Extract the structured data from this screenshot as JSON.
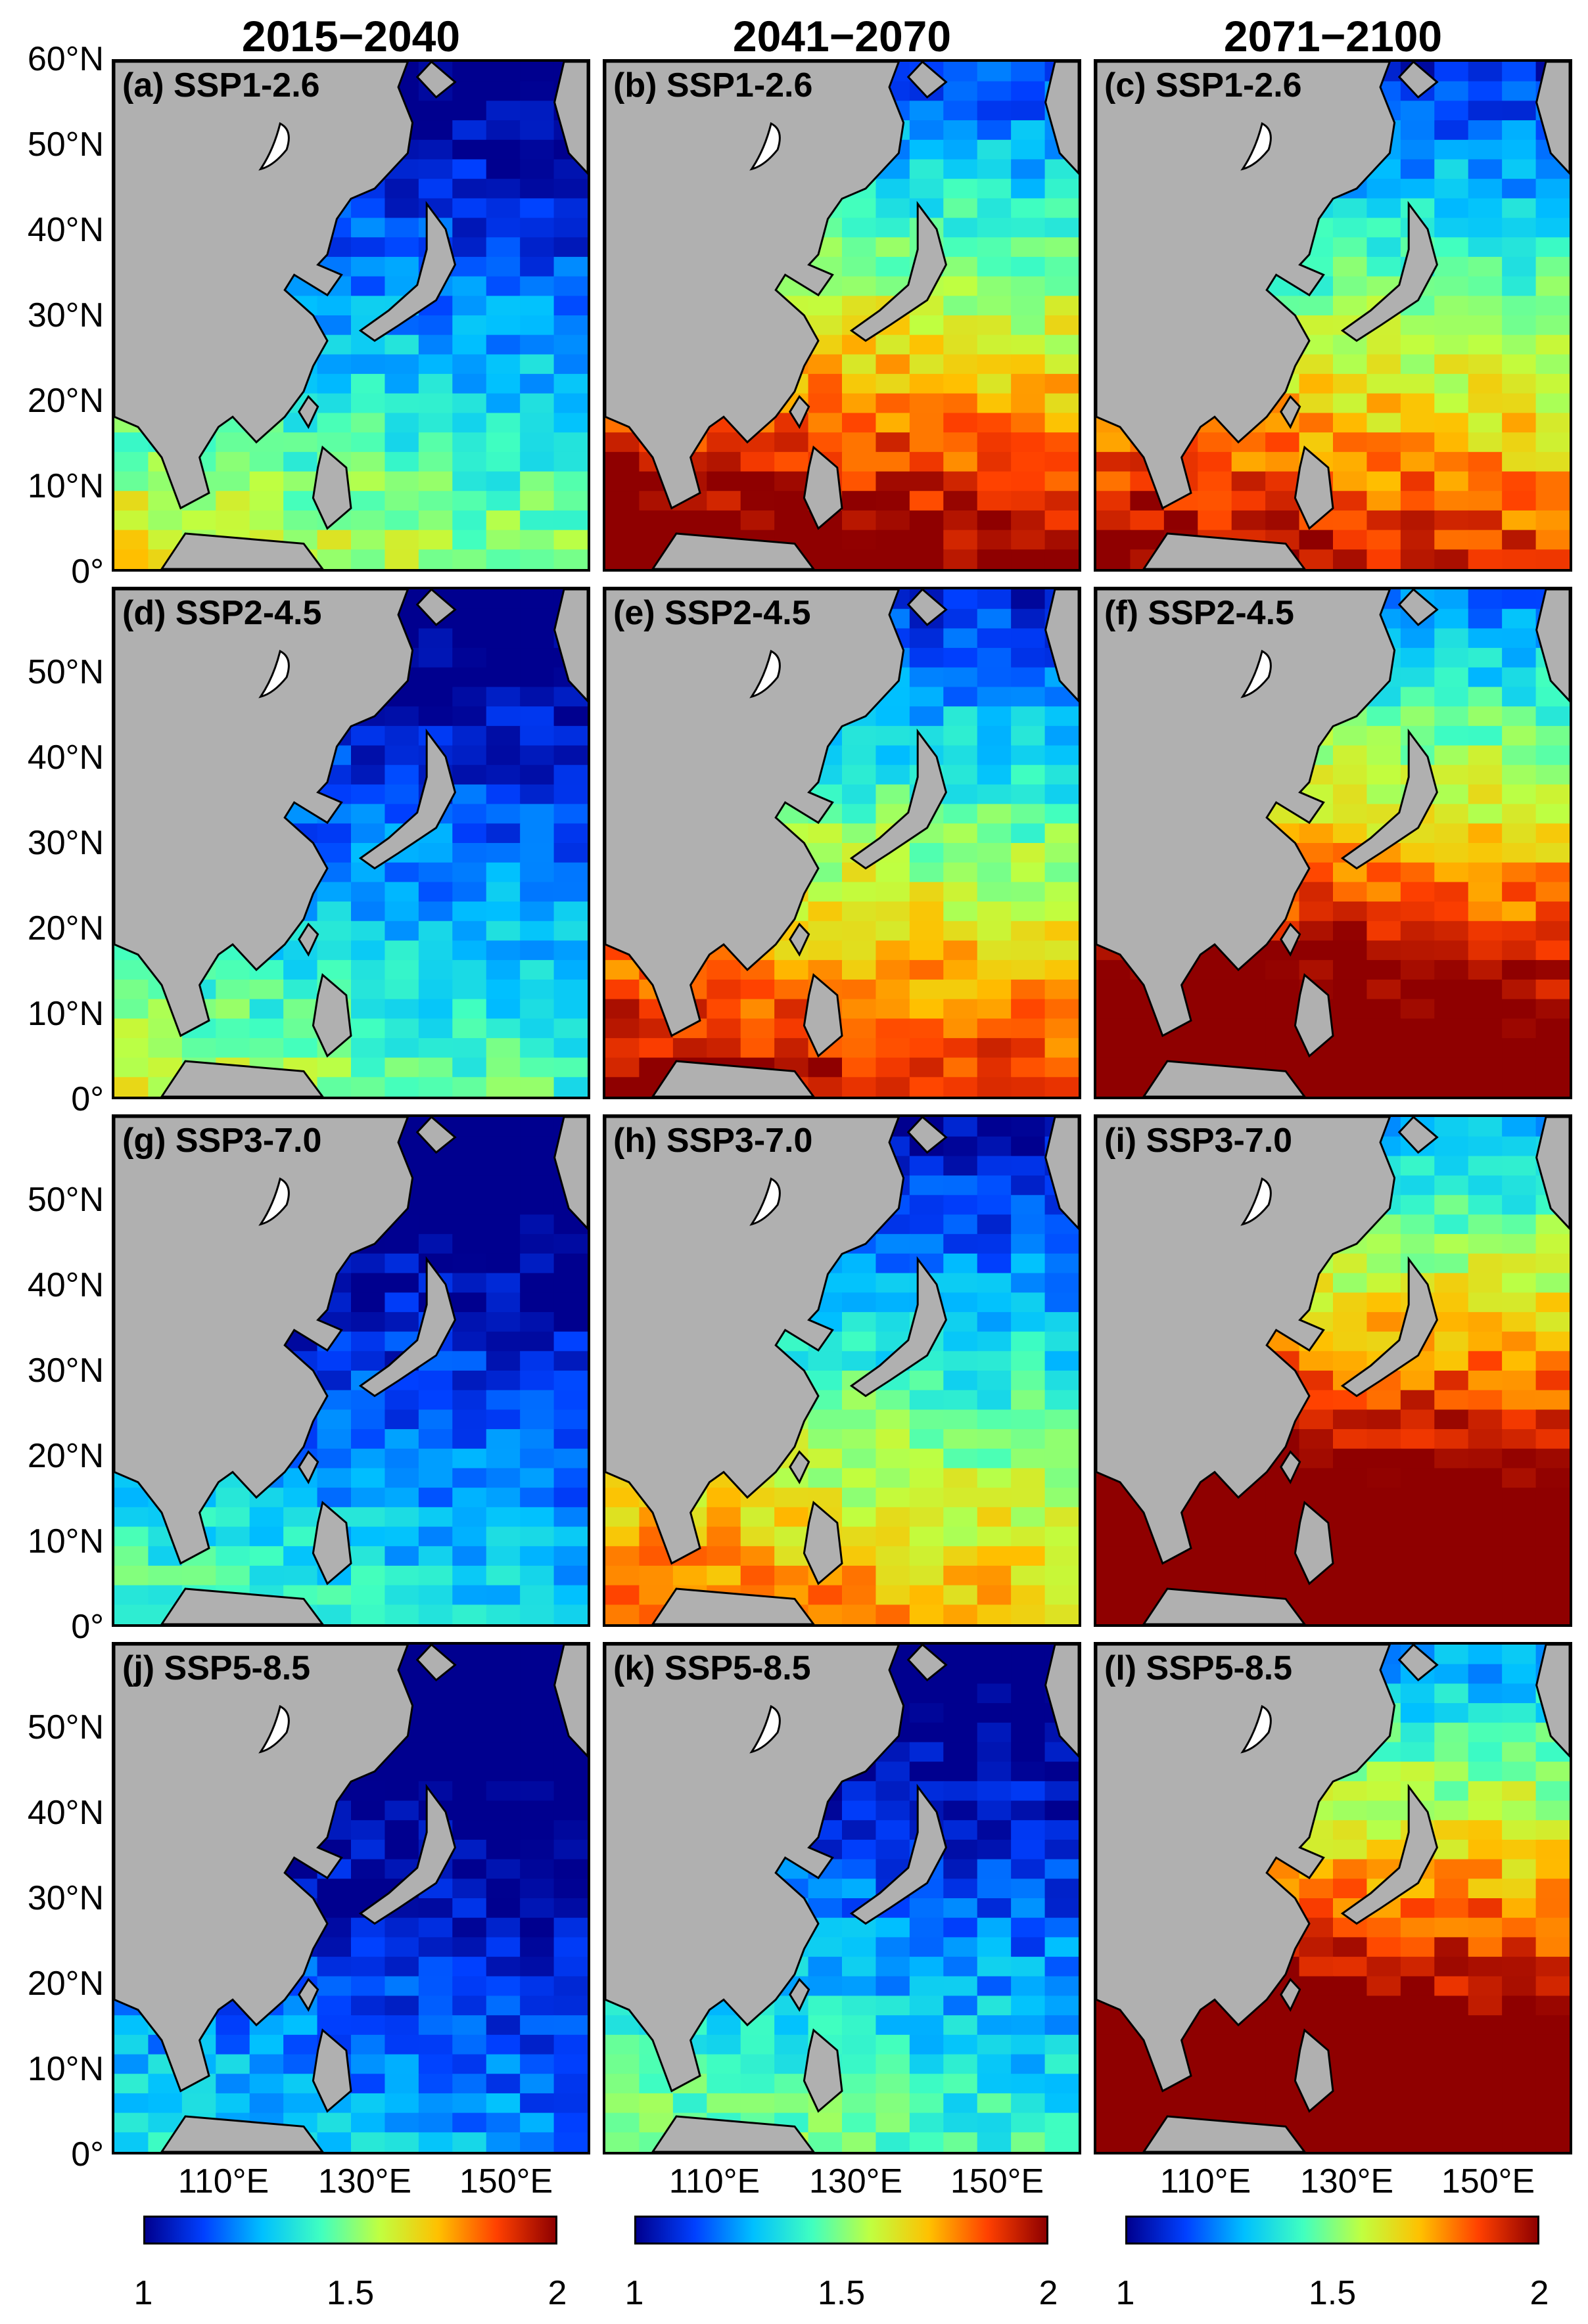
{
  "columns": [
    "2015−2040",
    "2041−2070",
    "2071−2100"
  ],
  "panels": [
    {
      "label": "(a) SSP1-2.6",
      "intensity": 0.35
    },
    {
      "label": "(b) SSP1-2.6",
      "intensity": 0.7
    },
    {
      "label": "(c) SSP1-2.6",
      "intensity": 0.62
    },
    {
      "label": "(d) SSP2-4.5",
      "intensity": 0.3
    },
    {
      "label": "(e) SSP2-4.5",
      "intensity": 0.62
    },
    {
      "label": "(f) SSP2-4.5",
      "intensity": 0.82
    },
    {
      "label": "(g) SSP3-7.0",
      "intensity": 0.22
    },
    {
      "label": "(h) SSP3-7.0",
      "intensity": 0.5
    },
    {
      "label": "(i) SSP3-7.0",
      "intensity": 0.92
    },
    {
      "label": "(j) SSP5-8.5",
      "intensity": 0.15
    },
    {
      "label": "(k) SSP5-8.5",
      "intensity": 0.28
    },
    {
      "label": "(l) SSP5-8.5",
      "intensity": 0.9
    }
  ],
  "lat_labels": [
    "60°N",
    "50°N",
    "40°N",
    "30°N",
    "20°N",
    "10°N",
    "0°"
  ],
  "lon_labels": [
    "110°E",
    "130°E",
    "150°E"
  ],
  "colorbar": {
    "ticks": [
      "1",
      "1.5",
      "2"
    ],
    "colors": [
      "#00008f",
      "#0040ff",
      "#00c0ff",
      "#40ffc0",
      "#c0ff40",
      "#ffc000",
      "#ff4000",
      "#8f0000"
    ]
  },
  "land_color": "#b0b0b0"
}
